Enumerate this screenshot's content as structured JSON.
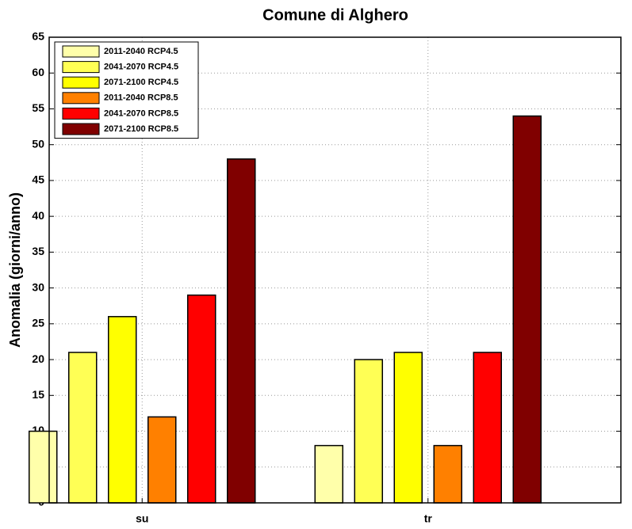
{
  "chart_data": {
    "type": "bar",
    "title": "Comune di Alghero",
    "ylabel": "Anomalia (giorni/anno)",
    "categories": [
      "su",
      "tr"
    ],
    "series": [
      {
        "name": "2011-2040 RCP4.5",
        "color": "#ffffaa",
        "values": [
          10,
          8
        ]
      },
      {
        "name": "2041-2070 RCP4.5",
        "color": "#ffff55",
        "values": [
          21,
          20
        ]
      },
      {
        "name": "2071-2100 RCP4.5",
        "color": "#ffff00",
        "values": [
          26,
          21
        ]
      },
      {
        "name": "2011-2040 RCP8.5",
        "color": "#ff8000",
        "values": [
          12,
          8
        ]
      },
      {
        "name": "2041-2070 RCP8.5",
        "color": "#ff0000",
        "values": [
          29,
          21
        ]
      },
      {
        "name": "2071-2100 RCP8.5",
        "color": "#800000",
        "values": [
          48,
          54
        ]
      }
    ],
    "ylim": [
      0,
      65
    ],
    "yticks": [
      0,
      5,
      10,
      15,
      20,
      25,
      30,
      35,
      40,
      45,
      50,
      55,
      60,
      65
    ],
    "grid": true,
    "legend": "upper-left"
  }
}
